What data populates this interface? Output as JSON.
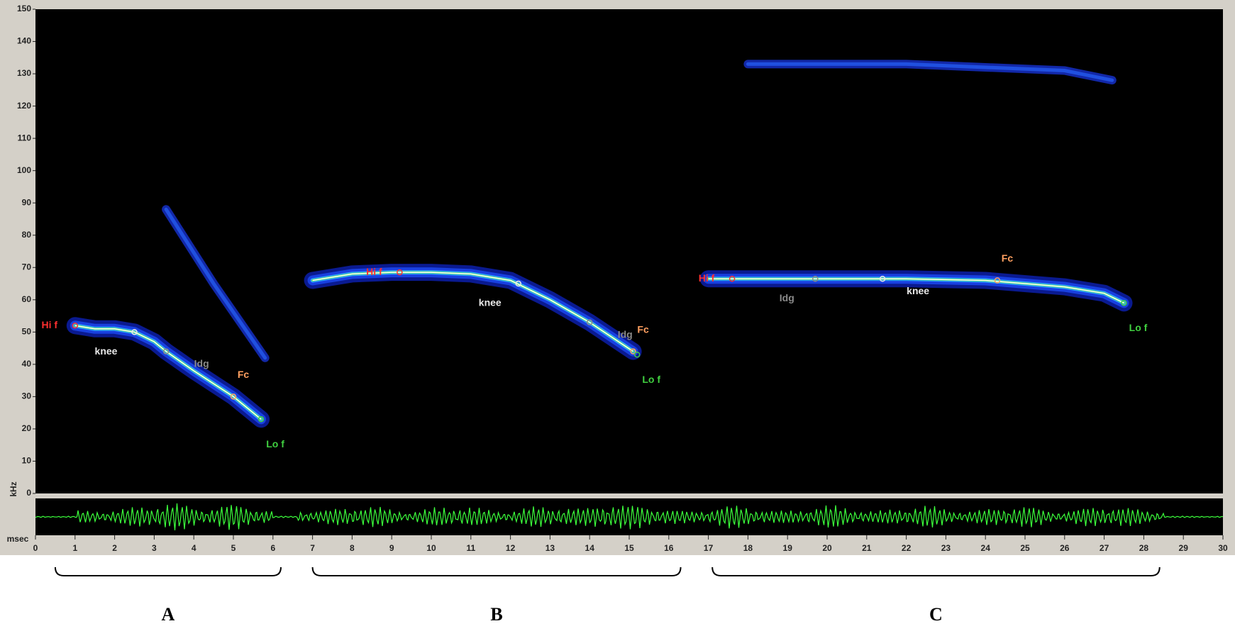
{
  "chart_data": {
    "type": "line",
    "ylabel": "kHz",
    "xlabel": "msec",
    "xlim": [
      0,
      30
    ],
    "xticks": [
      0,
      1,
      2,
      3,
      4,
      5,
      6,
      7,
      8,
      9,
      10,
      11,
      12,
      13,
      14,
      15,
      16,
      17,
      18,
      19,
      20,
      21,
      22,
      23,
      24,
      25,
      26,
      27,
      28,
      29,
      30
    ],
    "ylim": [
      0,
      150
    ],
    "yticks": [
      0,
      10,
      20,
      30,
      40,
      50,
      60,
      70,
      80,
      90,
      100,
      110,
      120,
      130,
      140,
      150
    ],
    "series": [
      {
        "name": "A",
        "color": "#ffffff",
        "span": [
          0.5,
          6.2
        ],
        "x": [
          1,
          1.5,
          2,
          2.5,
          3,
          3.3,
          4,
          5,
          5.7
        ],
        "values": [
          52,
          51,
          51,
          50,
          47,
          44,
          38,
          30,
          23
        ],
        "harmonic": {
          "x": [
            3.3,
            4.5,
            5.8
          ],
          "values": [
            88,
            65,
            42
          ]
        },
        "points": [
          {
            "label": "Hi f",
            "x": 1,
            "y": 52,
            "color": "#ff3030"
          },
          {
            "label": "knee",
            "x": 2.5,
            "y": 50,
            "color": "#e8e8e8"
          },
          {
            "label": "Idg",
            "x": 3.3,
            "y": 44,
            "color": "#8a8a8a"
          },
          {
            "label": "Fc",
            "x": 5,
            "y": 30,
            "color": "#ffa060"
          },
          {
            "label": "Lo f",
            "x": 5.7,
            "y": 23,
            "color": "#40d040"
          }
        ]
      },
      {
        "name": "B",
        "color": "#ffffff",
        "span": [
          7,
          16.3
        ],
        "x": [
          7,
          8,
          9,
          10,
          11,
          12,
          13,
          14,
          15.1
        ],
        "values": [
          66,
          68,
          68.5,
          68.5,
          68,
          66,
          60,
          53,
          44
        ],
        "points": [
          {
            "label": "Hi f",
            "x": 9.2,
            "y": 68.5,
            "color": "#ff3030"
          },
          {
            "label": "knee",
            "x": 12.2,
            "y": 65,
            "color": "#e8e8e8"
          },
          {
            "label": "Idg",
            "x": 14,
            "y": 53,
            "color": "#8a8a8a"
          },
          {
            "label": "Fc",
            "x": 15.1,
            "y": 44,
            "color": "#ffa060"
          },
          {
            "label": "Lo f",
            "x": 15.2,
            "y": 43,
            "color": "#40d040"
          }
        ]
      },
      {
        "name": "C",
        "color": "#ffffff",
        "span": [
          17.1,
          28.4
        ],
        "x": [
          17,
          18,
          20,
          22,
          24,
          25,
          26,
          27,
          27.5
        ],
        "values": [
          66.5,
          66.5,
          66.5,
          66.5,
          66,
          65,
          64,
          62,
          59
        ],
        "harmonic": {
          "x": [
            18,
            20,
            22,
            24,
            26,
            27.2
          ],
          "values": [
            133,
            133,
            133,
            132,
            131,
            128
          ]
        },
        "points": [
          {
            "label": "Hi f",
            "x": 17.6,
            "y": 66.5,
            "color": "#ff3030"
          },
          {
            "label": "Idg",
            "x": 19.7,
            "y": 66.5,
            "color": "#8a8a8a"
          },
          {
            "label": "knee",
            "x": 21.4,
            "y": 66.5,
            "color": "#e8e8e8"
          },
          {
            "label": "Fc",
            "x": 24.3,
            "y": 66,
            "color": "#ffa060"
          },
          {
            "label": "Lo f",
            "x": 27.5,
            "y": 59,
            "color": "#40d040"
          }
        ]
      }
    ]
  }
}
